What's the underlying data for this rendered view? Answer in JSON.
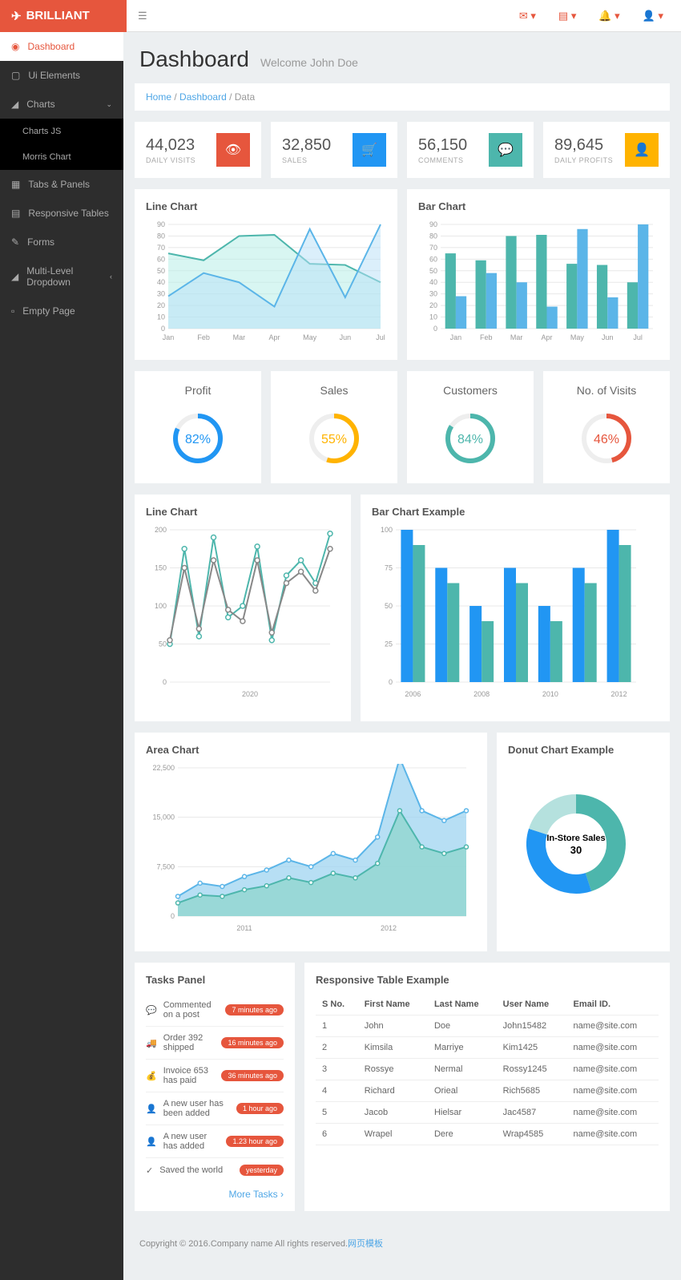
{
  "brand": "BRILLIANT",
  "page": {
    "title": "Dashboard",
    "welcome": "Welcome John Doe"
  },
  "breadcrumb": {
    "home": "Home",
    "dash": "Dashboard",
    "current": "Data"
  },
  "sidebar": {
    "items": [
      {
        "label": "Dashboard",
        "icon": "◉"
      },
      {
        "label": "Ui Elements",
        "icon": "▢"
      },
      {
        "label": "Charts",
        "icon": "◢",
        "expanded": true,
        "sub": [
          "Charts JS",
          "Morris Chart"
        ]
      },
      {
        "label": "Tabs & Panels",
        "icon": "▦"
      },
      {
        "label": "Responsive Tables",
        "icon": "▤"
      },
      {
        "label": "Forms",
        "icon": "✎"
      },
      {
        "label": "Multi-Level Dropdown",
        "icon": "◢"
      },
      {
        "label": "Empty Page",
        "icon": "▫"
      }
    ]
  },
  "stats": [
    {
      "num": "44,023",
      "lbl": "DAILY VISITS",
      "color": "#e6563d",
      "icon": "👁"
    },
    {
      "num": "32,850",
      "lbl": "SALES",
      "color": "#2196f3",
      "icon": "🛒"
    },
    {
      "num": "56,150",
      "lbl": "COMMENTS",
      "color": "#4db6ac",
      "icon": "💬"
    },
    {
      "num": "89,645",
      "lbl": "DAILY PROFITS",
      "color": "#ffb300",
      "icon": "👤"
    }
  ],
  "lineChart1": {
    "title": "Line Chart",
    "labels": [
      "Jan",
      "Feb",
      "Mar",
      "Apr",
      "May",
      "Jun",
      "Jul"
    ],
    "series": [
      {
        "color": "#4db6ac",
        "fill": "#b2ede6",
        "opacity": 0.5,
        "data": [
          65,
          59,
          80,
          81,
          56,
          55,
          40
        ]
      },
      {
        "color": "#5bb5e8",
        "fill": "#b8e0f7",
        "opacity": 0.5,
        "data": [
          28,
          48,
          40,
          19,
          86,
          27,
          90
        ]
      }
    ],
    "ymin": 0,
    "ymax": 90,
    "ystep": 10,
    "bg": "#ffffff",
    "grid": "#e8e8e8"
  },
  "barChart1": {
    "title": "Bar Chart",
    "labels": [
      "Jan",
      "Feb",
      "Mar",
      "Apr",
      "May",
      "Jun",
      "Jul"
    ],
    "series": [
      {
        "color": "#4db6ac",
        "data": [
          65,
          59,
          80,
          81,
          56,
          55,
          40
        ]
      },
      {
        "color": "#5bb5e8",
        "data": [
          28,
          48,
          40,
          19,
          86,
          27,
          90
        ]
      }
    ],
    "ymin": 0,
    "ymax": 90,
    "ystep": 10,
    "bg": "#ffffff",
    "grid": "#e8e8e8",
    "barWidth": 0.35
  },
  "donuts": [
    {
      "title": "Profit",
      "value": 82,
      "color": "#2196f3"
    },
    {
      "title": "Sales",
      "value": 55,
      "color": "#ffb300"
    },
    {
      "title": "Customers",
      "value": 84,
      "color": "#4db6ac"
    },
    {
      "title": "No. of Visits",
      "value": 46,
      "color": "#e6563d"
    }
  ],
  "lineChart2": {
    "title": "Line Chart",
    "xlabels": [
      "2020"
    ],
    "series": [
      {
        "color": "#4db6ac",
        "data": [
          50,
          175,
          60,
          190,
          85,
          100,
          178,
          55,
          140,
          160,
          130,
          195
        ]
      },
      {
        "color": "#888888",
        "data": [
          55,
          150,
          70,
          160,
          95,
          80,
          160,
          65,
          130,
          145,
          120,
          175
        ]
      }
    ],
    "ymin": 0,
    "ymax": 200,
    "ystep": 50,
    "markers": true
  },
  "barChart2": {
    "title": "Bar Chart Example",
    "xlabels": [
      "2006",
      "2008",
      "2010",
      "2012"
    ],
    "categories": [
      "2006",
      "2007",
      "2008",
      "2009",
      "2010",
      "2011",
      "2012"
    ],
    "series": [
      {
        "color": "#2196f3",
        "data": [
          100,
          75,
          50,
          75,
          50,
          75,
          100
        ]
      },
      {
        "color": "#4db6ac",
        "data": [
          90,
          65,
          40,
          65,
          40,
          65,
          90
        ]
      }
    ],
    "ymin": 0,
    "ymax": 100,
    "ystep": 25,
    "barWidth": 0.35
  },
  "areaChart": {
    "title": "Area Chart",
    "xlabels": [
      "2011",
      "2012"
    ],
    "series": [
      {
        "color": "#5bb5e8",
        "fill": "#9fd4f0",
        "data": [
          3000,
          5000,
          4500,
          6000,
          7000,
          8500,
          7500,
          9500,
          8500,
          12000,
          24000,
          16000,
          14500,
          16000
        ]
      },
      {
        "color": "#4db6ac",
        "fill": "#8fd6cd",
        "data": [
          2000,
          3200,
          3000,
          4000,
          4600,
          5800,
          5100,
          6500,
          5800,
          8000,
          16000,
          10500,
          9500,
          10500
        ]
      }
    ],
    "ymin": 0,
    "ymax": 22500,
    "ystep": 7500
  },
  "donutChart": {
    "title": "Donut Chart Example",
    "centerLabel": "In-Store Sales",
    "centerValue": "30",
    "slices": [
      {
        "color": "#4db6ac",
        "value": 45
      },
      {
        "color": "#2196f3",
        "value": 35
      },
      {
        "color": "#b5e1de",
        "value": 20
      }
    ]
  },
  "tasksPanel": {
    "title": "Tasks Panel",
    "tasks": [
      {
        "icon": "💬",
        "text": "Commented on a post",
        "badge": "7 minutes ago"
      },
      {
        "icon": "🚚",
        "text": "Order 392 shipped",
        "badge": "16 minutes ago"
      },
      {
        "icon": "💰",
        "text": "Invoice 653 has paid",
        "badge": "36 minutes ago"
      },
      {
        "icon": "👤",
        "text": "A new user has been added",
        "badge": "1 hour ago"
      },
      {
        "icon": "👤",
        "text": "A new user has added",
        "badge": "1.23 hour ago"
      },
      {
        "icon": "✓",
        "text": "Saved the world",
        "badge": "yesterday"
      }
    ],
    "more": "More Tasks"
  },
  "table": {
    "title": "Responsive Table Example",
    "cols": [
      "S No.",
      "First Name",
      "Last Name",
      "User Name",
      "Email ID."
    ],
    "rows": [
      [
        "1",
        "John",
        "Doe",
        "John15482",
        "name@site.com"
      ],
      [
        "2",
        "Kimsila",
        "Marriye",
        "Kim1425",
        "name@site.com"
      ],
      [
        "3",
        "Rossye",
        "Nermal",
        "Rossy1245",
        "name@site.com"
      ],
      [
        "4",
        "Richard",
        "Orieal",
        "Rich5685",
        "name@site.com"
      ],
      [
        "5",
        "Jacob",
        "Hielsar",
        "Jac4587",
        "name@site.com"
      ],
      [
        "6",
        "Wrapel",
        "Dere",
        "Wrap4585",
        "name@site.com"
      ]
    ]
  },
  "footer": {
    "text": "Copyright © 2016.Company name All rights reserved.",
    "link": "网页模板"
  }
}
